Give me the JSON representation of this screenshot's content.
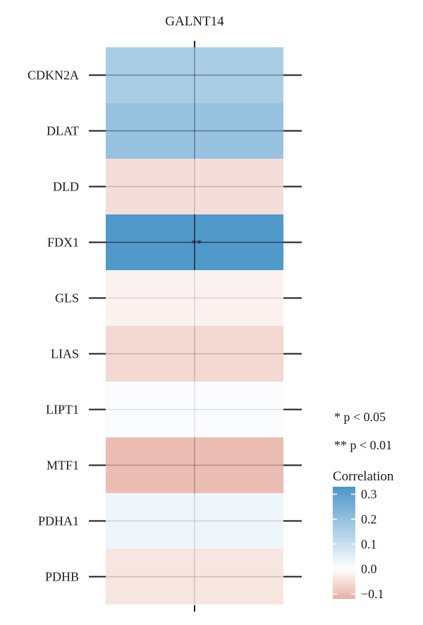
{
  "chart_data": {
    "type": "heatmap",
    "column": "GALNT14",
    "rows": [
      "CDKN2A",
      "DLAT",
      "DLD",
      "FDX1",
      "GLS",
      "LIAS",
      "LIPT1",
      "MTF1",
      "PDHA1",
      "PDHB"
    ],
    "values": [
      0.16,
      0.19,
      -0.05,
      0.32,
      -0.02,
      -0.06,
      0.01,
      -0.1,
      0.03,
      -0.04
    ],
    "significance": [
      "",
      "",
      "",
      "**",
      "",
      "",
      "",
      "",
      "",
      ""
    ],
    "significance_legend": [
      {
        "symbol": "*",
        "label": "* p < 0.05"
      },
      {
        "symbol": "**",
        "label": "** p < 0.01"
      }
    ],
    "colorbar": {
      "title": "Correlation",
      "ticks": [
        0.3,
        0.2,
        0.1,
        0.0,
        -0.1
      ],
      "tick_labels": [
        "0.3",
        "0.2",
        "0.1",
        "0.0",
        "−0.1"
      ],
      "range": [
        -0.12,
        0.33
      ],
      "colors": {
        "high": "#4b97c9",
        "mid": "#ffffff",
        "low": "#e8b0a4"
      }
    }
  }
}
